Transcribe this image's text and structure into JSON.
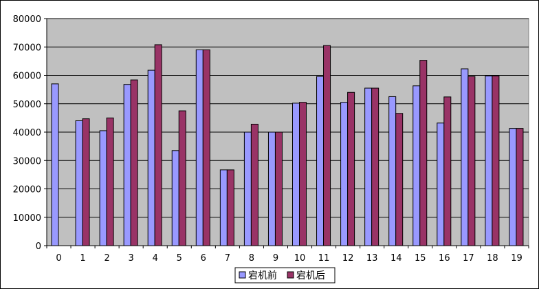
{
  "chart_data": {
    "type": "bar",
    "title": "",
    "xlabel": "",
    "ylabel": "",
    "ylim": [
      0,
      80000
    ],
    "yticks": [
      0,
      10000,
      20000,
      30000,
      40000,
      50000,
      60000,
      70000,
      80000
    ],
    "grid": true,
    "legend_position": "bottom",
    "background": "#C0C0C0",
    "categories": [
      "0",
      "1",
      "2",
      "3",
      "4",
      "5",
      "6",
      "7",
      "8",
      "9",
      "10",
      "11",
      "12",
      "13",
      "14",
      "15",
      "16",
      "17",
      "18",
      "19"
    ],
    "series": [
      {
        "name": "宕机前",
        "color": "#9999FF",
        "values": [
          57000,
          44000,
          40500,
          56800,
          61800,
          33500,
          69000,
          26700,
          40000,
          40000,
          50200,
          59600,
          50500,
          55500,
          52500,
          56300,
          43200,
          62300,
          59800,
          41300
        ]
      },
      {
        "name": "宕机后",
        "color": "#993366",
        "values": [
          0,
          44700,
          45000,
          58400,
          70800,
          47500,
          69000,
          26700,
          42800,
          40000,
          50500,
          70500,
          54000,
          55500,
          46600,
          65300,
          52400,
          59600,
          59800,
          41300
        ]
      }
    ]
  }
}
